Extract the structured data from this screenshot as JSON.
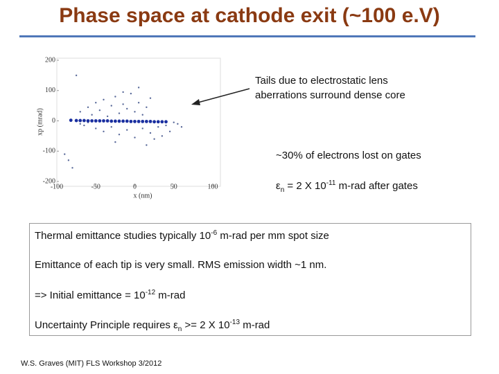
{
  "title": "Phase space at cathode exit (~100 e.V)",
  "figure": {
    "ylabel": "xp (mrad)",
    "xlabel": "x (nm)",
    "xlim": [
      -100,
      100
    ],
    "ylim": [
      -200,
      200
    ],
    "xticks": [
      -100,
      -50,
      0,
      50,
      100
    ],
    "yticks": [
      -200,
      -100,
      0,
      100,
      200
    ],
    "core": {
      "color": "#1a2fa0",
      "x": [
        -82,
        -75,
        -70,
        -65,
        -60,
        -55,
        -50,
        -45,
        -40,
        -35,
        -30,
        -25,
        -20,
        -15,
        -10,
        -5,
        0,
        5,
        10,
        15,
        20,
        25,
        30,
        35,
        40
      ],
      "y": [
        2,
        1,
        1,
        1,
        0,
        0,
        0,
        0,
        0,
        0,
        -1,
        -1,
        -1,
        -1,
        -1,
        -2,
        -2,
        -2,
        -2,
        -2,
        -2,
        -3,
        -3,
        -3,
        -3
      ]
    },
    "tails": {
      "color": "#5a6a9a",
      "x": [
        -70,
        -60,
        -55,
        -50,
        -45,
        -40,
        -35,
        -30,
        -25,
        -20,
        -15,
        -10,
        -5,
        0,
        5,
        10,
        15,
        -65,
        -50,
        -40,
        -30,
        -20,
        -10,
        0,
        10,
        20,
        30,
        40,
        50,
        55,
        45,
        35,
        25,
        15,
        -75,
        -85,
        -80,
        -90,
        -60,
        -70,
        60,
        5,
        -15,
        20,
        -25
      ],
      "y": [
        30,
        45,
        20,
        60,
        35,
        70,
        15,
        50,
        80,
        25,
        55,
        40,
        90,
        30,
        60,
        20,
        45,
        -15,
        -25,
        -35,
        -20,
        -45,
        -30,
        -55,
        -25,
        -40,
        -20,
        -15,
        -5,
        -10,
        -35,
        -50,
        -60,
        -80,
        150,
        -130,
        -155,
        -110,
        -5,
        -10,
        -20,
        110,
        95,
        75,
        -70
      ]
    }
  },
  "callout": {
    "line1": "Tails due to electrostatic lens",
    "line2": "aberrations surround dense core"
  },
  "note1": "~30% of electrons lost on gates",
  "note2": {
    "pre": "ε",
    "sub": "n",
    "mid": " = 2 X 10",
    "sup": "-11",
    "post": " m-rad after gates"
  },
  "box": [
    {
      "pre": "Thermal emittance studies typically 10",
      "sup": "-6",
      "post": " m-rad per mm spot size"
    },
    {
      "pre": "Emittance of each tip is very small.  RMS emission width ~1 nm."
    },
    {
      "pre": "=> Initial emittance = 10",
      "sup": "-12",
      "post": " m-rad"
    },
    {
      "pre": "Uncertainty Principle requires ε",
      "sub": "n",
      "mid": " >= 2 X 10",
      "sup": "-13",
      "post": " m-rad"
    }
  ],
  "footer": "W.S. Graves (MIT) FLS Workshop 3/2012"
}
